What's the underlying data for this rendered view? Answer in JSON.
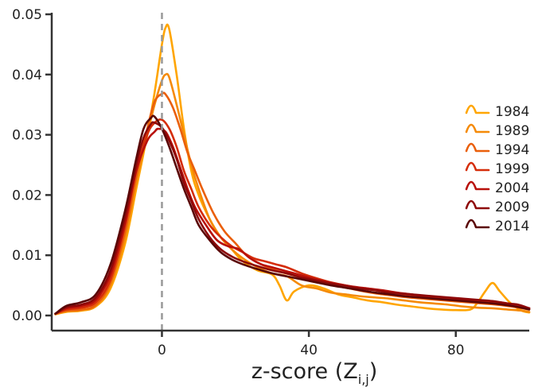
{
  "chart_data": {
    "type": "line",
    "title": "",
    "xlabel": "z-score (Z",
    "xlabel_subscript": "i,j",
    "xlabel_suffix": ")",
    "ylabel": "",
    "xlim": [
      -30,
      100
    ],
    "ylim": [
      0,
      0.05
    ],
    "x_ticks": [
      0,
      40,
      80
    ],
    "x_tick_labels": [
      "0",
      "40",
      "80"
    ],
    "y_ticks": [
      0,
      0.01,
      0.02,
      0.03,
      0.04,
      0.05
    ],
    "y_tick_labels": [
      "0.00",
      "0.01",
      "0.02",
      "0.03",
      "0.04",
      "0.05"
    ],
    "reference_line": {
      "x": 0,
      "style": "dashed",
      "color": "#999999"
    },
    "grid": false,
    "legend_position": "right",
    "series": [
      {
        "name": "1984",
        "color": "#FFA500",
        "points": [
          [
            -29,
            0.0002
          ],
          [
            -26,
            0.0006
          ],
          [
            -22,
            0.0008
          ],
          [
            -18,
            0.0015
          ],
          [
            -14,
            0.0045
          ],
          [
            -10,
            0.012
          ],
          [
            -7,
            0.021
          ],
          [
            -4,
            0.03
          ],
          [
            -2,
            0.037
          ],
          [
            0,
            0.045
          ],
          [
            1,
            0.0478
          ],
          [
            2,
            0.0475
          ],
          [
            4,
            0.04
          ],
          [
            6,
            0.031
          ],
          [
            8,
            0.024
          ],
          [
            10,
            0.02
          ],
          [
            13,
            0.016
          ],
          [
            16,
            0.013
          ],
          [
            19,
            0.011
          ],
          [
            22,
            0.009
          ],
          [
            26,
            0.0075
          ],
          [
            30,
            0.0068
          ],
          [
            32,
            0.005
          ],
          [
            34,
            0.0025
          ],
          [
            36,
            0.004
          ],
          [
            40,
            0.005
          ],
          [
            44,
            0.0045
          ],
          [
            48,
            0.0035
          ],
          [
            52,
            0.003
          ],
          [
            56,
            0.0025
          ],
          [
            60,
            0.0022
          ],
          [
            64,
            0.0018
          ],
          [
            68,
            0.0015
          ],
          [
            72,
            0.0012
          ],
          [
            76,
            0.001
          ],
          [
            80,
            0.0009
          ],
          [
            84,
            0.001
          ],
          [
            86,
            0.0022
          ],
          [
            88,
            0.004
          ],
          [
            90,
            0.0054
          ],
          [
            92,
            0.004
          ],
          [
            95,
            0.002
          ],
          [
            98,
            0.0008
          ],
          [
            100,
            0.0005
          ]
        ]
      },
      {
        "name": "1989",
        "color": "#F58A07",
        "points": [
          [
            -29,
            0.0002
          ],
          [
            -26,
            0.0007
          ],
          [
            -22,
            0.0009
          ],
          [
            -18,
            0.0016
          ],
          [
            -14,
            0.005
          ],
          [
            -10,
            0.013
          ],
          [
            -7,
            0.022
          ],
          [
            -4,
            0.03
          ],
          [
            -2,
            0.035
          ],
          [
            0,
            0.039
          ],
          [
            1,
            0.04
          ],
          [
            2,
            0.0395
          ],
          [
            4,
            0.035
          ],
          [
            6,
            0.03
          ],
          [
            8,
            0.025
          ],
          [
            10,
            0.021
          ],
          [
            13,
            0.016
          ],
          [
            16,
            0.013
          ],
          [
            19,
            0.011
          ],
          [
            22,
            0.0095
          ],
          [
            26,
            0.008
          ],
          [
            30,
            0.007
          ],
          [
            34,
            0.0065
          ],
          [
            38,
            0.005
          ],
          [
            42,
            0.0045
          ],
          [
            46,
            0.0038
          ],
          [
            50,
            0.0035
          ],
          [
            54,
            0.0032
          ],
          [
            58,
            0.003
          ],
          [
            62,
            0.0028
          ],
          [
            66,
            0.0025
          ],
          [
            70,
            0.0022
          ],
          [
            74,
            0.002
          ],
          [
            78,
            0.0018
          ],
          [
            82,
            0.0015
          ],
          [
            86,
            0.0013
          ],
          [
            90,
            0.0012
          ],
          [
            94,
            0.001
          ],
          [
            98,
            0.0008
          ],
          [
            100,
            0.0006
          ]
        ]
      },
      {
        "name": "1994",
        "color": "#EA5F0A",
        "points": [
          [
            -29,
            0.0003
          ],
          [
            -26,
            0.0008
          ],
          [
            -22,
            0.001
          ],
          [
            -18,
            0.0018
          ],
          [
            -14,
            0.0055
          ],
          [
            -10,
            0.014
          ],
          [
            -7,
            0.023
          ],
          [
            -4,
            0.031
          ],
          [
            -2,
            0.0355
          ],
          [
            0,
            0.0368
          ],
          [
            1,
            0.0367
          ],
          [
            3,
            0.0345
          ],
          [
            5,
            0.031
          ],
          [
            7,
            0.027
          ],
          [
            9,
            0.024
          ],
          [
            11,
            0.021
          ],
          [
            14,
            0.017
          ],
          [
            17,
            0.014
          ],
          [
            20,
            0.012
          ],
          [
            23,
            0.01
          ],
          [
            27,
            0.0085
          ],
          [
            31,
            0.0075
          ],
          [
            35,
            0.0068
          ],
          [
            39,
            0.0062
          ],
          [
            43,
            0.0056
          ],
          [
            47,
            0.005
          ],
          [
            51,
            0.0045
          ],
          [
            55,
            0.004
          ],
          [
            59,
            0.0036
          ],
          [
            63,
            0.0033
          ],
          [
            67,
            0.003
          ],
          [
            71,
            0.0028
          ],
          [
            75,
            0.0026
          ],
          [
            79,
            0.0024
          ],
          [
            83,
            0.0022
          ],
          [
            87,
            0.002
          ],
          [
            91,
            0.0018
          ],
          [
            95,
            0.0015
          ],
          [
            98,
            0.0012
          ],
          [
            100,
            0.001
          ]
        ]
      },
      {
        "name": "1999",
        "color": "#D52D0A",
        "points": [
          [
            -29,
            0.0003
          ],
          [
            -26,
            0.001
          ],
          [
            -22,
            0.0013
          ],
          [
            -18,
            0.0022
          ],
          [
            -14,
            0.006
          ],
          [
            -10,
            0.015
          ],
          [
            -7,
            0.024
          ],
          [
            -4,
            0.03
          ],
          [
            -2,
            0.032
          ],
          [
            0,
            0.0325
          ],
          [
            2,
            0.031
          ],
          [
            4,
            0.028
          ],
          [
            6,
            0.024
          ],
          [
            8,
            0.021
          ],
          [
            10,
            0.018
          ],
          [
            13,
            0.015
          ],
          [
            16,
            0.013
          ],
          [
            19,
            0.0115
          ],
          [
            22,
            0.0105
          ],
          [
            25,
            0.0095
          ],
          [
            28,
            0.009
          ],
          [
            31,
            0.0085
          ],
          [
            34,
            0.008
          ],
          [
            38,
            0.007
          ],
          [
            42,
            0.0062
          ],
          [
            46,
            0.0055
          ],
          [
            50,
            0.005
          ],
          [
            54,
            0.0045
          ],
          [
            58,
            0.0042
          ],
          [
            62,
            0.0038
          ],
          [
            66,
            0.0035
          ],
          [
            70,
            0.0033
          ],
          [
            74,
            0.003
          ],
          [
            78,
            0.0028
          ],
          [
            82,
            0.0025
          ],
          [
            86,
            0.0023
          ],
          [
            90,
            0.002
          ],
          [
            94,
            0.0018
          ],
          [
            97,
            0.0015
          ],
          [
            100,
            0.0012
          ]
        ]
      },
      {
        "name": "2004",
        "color": "#B8100A",
        "points": [
          [
            -29,
            0.0003
          ],
          [
            -26,
            0.0012
          ],
          [
            -22,
            0.0016
          ],
          [
            -18,
            0.0026
          ],
          [
            -14,
            0.0068
          ],
          [
            -10,
            0.0155
          ],
          [
            -7,
            0.024
          ],
          [
            -4,
            0.029
          ],
          [
            -2,
            0.0305
          ],
          [
            -1,
            0.031
          ],
          [
            1,
            0.0305
          ],
          [
            3,
            0.028
          ],
          [
            5,
            0.0245
          ],
          [
            7,
            0.021
          ],
          [
            9,
            0.018
          ],
          [
            12,
            0.015
          ],
          [
            15,
            0.0125
          ],
          [
            18,
            0.0115
          ],
          [
            21,
            0.011
          ],
          [
            24,
            0.0095
          ],
          [
            27,
            0.0085
          ],
          [
            30,
            0.008
          ],
          [
            33,
            0.0075
          ],
          [
            36,
            0.007
          ],
          [
            40,
            0.0063
          ],
          [
            44,
            0.0057
          ],
          [
            48,
            0.0052
          ],
          [
            52,
            0.0048
          ],
          [
            56,
            0.0045
          ],
          [
            60,
            0.0042
          ],
          [
            64,
            0.0038
          ],
          [
            68,
            0.0035
          ],
          [
            72,
            0.0032
          ],
          [
            76,
            0.003
          ],
          [
            80,
            0.0028
          ],
          [
            84,
            0.0026
          ],
          [
            88,
            0.0024
          ],
          [
            92,
            0.0022
          ],
          [
            96,
            0.0018
          ],
          [
            100,
            0.0012
          ]
        ]
      },
      {
        "name": "2009",
        "color": "#8E0808",
        "points": [
          [
            -29,
            0.0003
          ],
          [
            -26,
            0.0014
          ],
          [
            -22,
            0.0018
          ],
          [
            -18,
            0.003
          ],
          [
            -14,
            0.0075
          ],
          [
            -10,
            0.0165
          ],
          [
            -7,
            0.025
          ],
          [
            -5,
            0.0295
          ],
          [
            -3,
            0.0318
          ],
          [
            -2,
            0.032
          ],
          [
            0,
            0.0312
          ],
          [
            2,
            0.029
          ],
          [
            4,
            0.026
          ],
          [
            6,
            0.022
          ],
          [
            8,
            0.019
          ],
          [
            10,
            0.016
          ],
          [
            13,
            0.013
          ],
          [
            16,
            0.011
          ],
          [
            19,
            0.0098
          ],
          [
            22,
            0.009
          ],
          [
            26,
            0.0082
          ],
          [
            30,
            0.0075
          ],
          [
            34,
            0.007
          ],
          [
            38,
            0.0063
          ],
          [
            42,
            0.0058
          ],
          [
            46,
            0.0053
          ],
          [
            50,
            0.0049
          ],
          [
            54,
            0.0045
          ],
          [
            58,
            0.0042
          ],
          [
            62,
            0.0038
          ],
          [
            66,
            0.0036
          ],
          [
            70,
            0.0034
          ],
          [
            74,
            0.0032
          ],
          [
            78,
            0.003
          ],
          [
            82,
            0.0028
          ],
          [
            86,
            0.0026
          ],
          [
            90,
            0.0024
          ],
          [
            94,
            0.002
          ],
          [
            97,
            0.0018
          ],
          [
            100,
            0.0012
          ]
        ]
      },
      {
        "name": "2014",
        "color": "#5A0606",
        "points": [
          [
            -29,
            0.0003
          ],
          [
            -26,
            0.0016
          ],
          [
            -22,
            0.0022
          ],
          [
            -18,
            0.0035
          ],
          [
            -14,
            0.0085
          ],
          [
            -10,
            0.0175
          ],
          [
            -7,
            0.026
          ],
          [
            -5,
            0.031
          ],
          [
            -3,
            0.0328
          ],
          [
            -2,
            0.033
          ],
          [
            0,
            0.031
          ],
          [
            2,
            0.028
          ],
          [
            4,
            0.0245
          ],
          [
            6,
            0.021
          ],
          [
            8,
            0.018
          ],
          [
            10,
            0.015
          ],
          [
            13,
            0.0125
          ],
          [
            16,
            0.0105
          ],
          [
            19,
            0.0093
          ],
          [
            22,
            0.0085
          ],
          [
            26,
            0.0077
          ],
          [
            30,
            0.007
          ],
          [
            34,
            0.0065
          ],
          [
            38,
            0.006
          ],
          [
            42,
            0.0055
          ],
          [
            46,
            0.005
          ],
          [
            50,
            0.0046
          ],
          [
            54,
            0.0042
          ],
          [
            58,
            0.0038
          ],
          [
            62,
            0.0035
          ],
          [
            66,
            0.0032
          ],
          [
            70,
            0.003
          ],
          [
            74,
            0.0028
          ],
          [
            78,
            0.0026
          ],
          [
            82,
            0.0024
          ],
          [
            86,
            0.0022
          ],
          [
            90,
            0.002
          ],
          [
            94,
            0.0017
          ],
          [
            97,
            0.0014
          ],
          [
            100,
            0.001
          ]
        ]
      }
    ]
  }
}
